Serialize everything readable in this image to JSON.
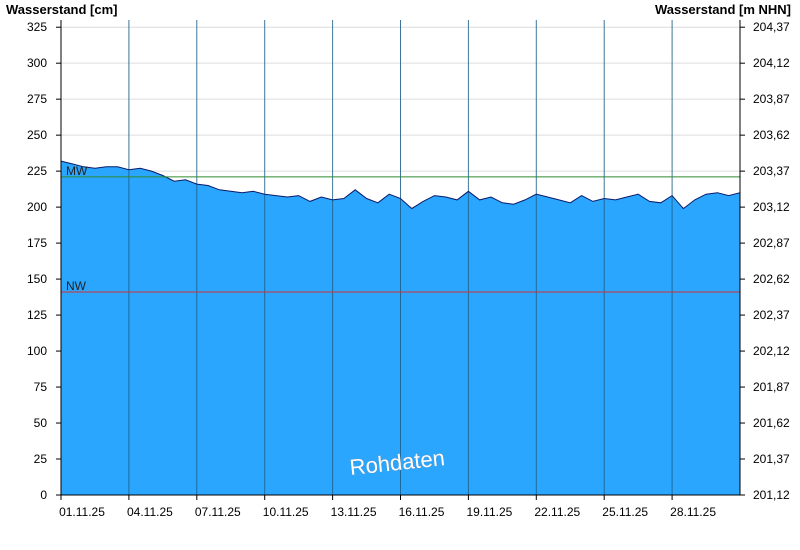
{
  "chart_data": {
    "type": "area",
    "title": "",
    "ylabel": "Wasserstand [cm]",
    "ylabel_right": "Wasserstand [m NHN]",
    "xlabel": "",
    "ylim": [
      0,
      330
    ],
    "yticks": [
      0,
      25,
      50,
      75,
      100,
      125,
      150,
      175,
      200,
      225,
      250,
      275,
      300,
      325
    ],
    "yticks_right": [
      "201,12",
      "201,37",
      "201,62",
      "201,87",
      "202,12",
      "202,37",
      "202,62",
      "202,87",
      "203,12",
      "203,37",
      "203,62",
      "203,87",
      "204,12",
      "204,37"
    ],
    "xlim": [
      "2025-11-01",
      "2025-12-01"
    ],
    "xticks": [
      {
        "date": "2025-11-01",
        "label": "01.11.25"
      },
      {
        "date": "2025-11-04",
        "label": "04.11.25"
      },
      {
        "date": "2025-11-07",
        "label": "07.11.25"
      },
      {
        "date": "2025-11-10",
        "label": "10.11.25"
      },
      {
        "date": "2025-11-13",
        "label": "13.11.25"
      },
      {
        "date": "2025-11-16",
        "label": "16.11.25"
      },
      {
        "date": "2025-11-19",
        "label": "19.11.25"
      },
      {
        "date": "2025-11-22",
        "label": "22.11.25"
      },
      {
        "date": "2025-11-25",
        "label": "25.11.25"
      },
      {
        "date": "2025-11-28",
        "label": "28.11.25"
      }
    ],
    "reference_lines": [
      {
        "label": "MW",
        "value": 221,
        "color": "#2e8b2e"
      },
      {
        "label": "NW",
        "value": 141,
        "color": "#d03030"
      }
    ],
    "fill_color": "#2aa6ff",
    "line_color": "#0a1a6a",
    "grid": true,
    "watermark": "Rohdaten",
    "series": [
      {
        "x": [
          "2025-11-01T00:00",
          "2025-11-01T12:00",
          "2025-11-02T00:00",
          "2025-11-02T12:00",
          "2025-11-03T00:00",
          "2025-11-03T12:00",
          "2025-11-04T00:00",
          "2025-11-04T12:00",
          "2025-11-05T00:00",
          "2025-11-05T12:00",
          "2025-11-06T00:00",
          "2025-11-06T12:00",
          "2025-11-07T00:00",
          "2025-11-07T12:00",
          "2025-11-08T00:00",
          "2025-11-08T12:00",
          "2025-11-09T00:00",
          "2025-11-09T12:00",
          "2025-11-10T00:00",
          "2025-11-10T12:00",
          "2025-11-11T00:00",
          "2025-11-11T12:00",
          "2025-11-12T00:00",
          "2025-11-12T12:00",
          "2025-11-13T00:00",
          "2025-11-13T12:00",
          "2025-11-14T00:00",
          "2025-11-14T12:00",
          "2025-11-15T00:00",
          "2025-11-15T12:00",
          "2025-11-16T00:00",
          "2025-11-16T12:00",
          "2025-11-17T00:00",
          "2025-11-17T12:00",
          "2025-11-18T00:00",
          "2025-11-18T12:00",
          "2025-11-19T00:00",
          "2025-11-19T12:00",
          "2025-11-20T00:00",
          "2025-11-20T12:00",
          "2025-11-21T00:00",
          "2025-11-21T12:00",
          "2025-11-22T00:00",
          "2025-11-22T12:00",
          "2025-11-23T00:00",
          "2025-11-23T12:00",
          "2025-11-24T00:00",
          "2025-11-24T12:00",
          "2025-11-25T00:00",
          "2025-11-25T12:00",
          "2025-11-26T00:00",
          "2025-11-26T12:00",
          "2025-11-27T00:00",
          "2025-11-27T12:00",
          "2025-11-28T00:00",
          "2025-11-28T12:00",
          "2025-11-29T00:00",
          "2025-11-29T12:00",
          "2025-11-30T00:00",
          "2025-11-30T12:00",
          "2025-12-01T00:00"
        ],
        "values": [
          232,
          230,
          228,
          227,
          228,
          228,
          226,
          227,
          225,
          222,
          218,
          219,
          216,
          215,
          212,
          211,
          210,
          211,
          209,
          208,
          207,
          208,
          204,
          207,
          205,
          206,
          212,
          206,
          203,
          209,
          206,
          199,
          204,
          208,
          207,
          205,
          211,
          205,
          207,
          203,
          202,
          205,
          209,
          207,
          205,
          203,
          208,
          204,
          206,
          205,
          207,
          209,
          204,
          203,
          208,
          199,
          205,
          209,
          210,
          208,
          210
        ]
      }
    ]
  }
}
